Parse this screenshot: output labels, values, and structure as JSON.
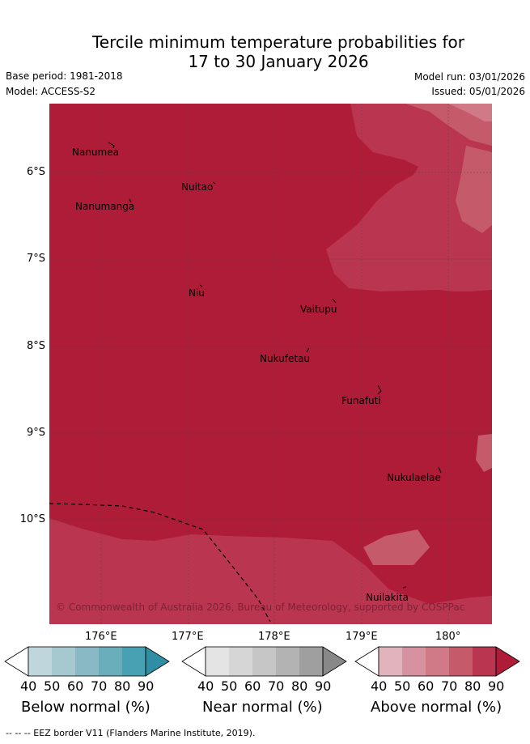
{
  "title": {
    "line1": "Tercile minimum temperature probabilities for",
    "line2": "17 to 30 January 2026"
  },
  "meta": {
    "base_period": "Base period: 1981-2018",
    "model": "Model: ACCESS-S2",
    "model_run": "Model run: 03/01/2026",
    "issued": "Issued: 05/01/2026"
  },
  "axes": {
    "lat_labels": [
      "6°S",
      "7°S",
      "8°S",
      "9°S",
      "10°S"
    ],
    "lon_labels": [
      "176°E",
      "177°E",
      "178°E",
      "179°E",
      "180°"
    ]
  },
  "places": [
    {
      "name": "Nanumea"
    },
    {
      "name": "Nuitao"
    },
    {
      "name": "Nanumanga"
    },
    {
      "name": "Niu"
    },
    {
      "name": "Vaitupu"
    },
    {
      "name": "Nukufetau"
    },
    {
      "name": "Funafuti"
    },
    {
      "name": "Nukulaelae"
    },
    {
      "name": "Nuilakita"
    }
  ],
  "copyright": "© Commonwealth of Australia 2026, Bureau of Meteorology, supported by COSPPac",
  "colorbars": [
    {
      "title": "Below normal (%)",
      "ticks": [
        "40",
        "50",
        "60",
        "70",
        "80",
        "90"
      ],
      "colors": [
        "#ffffff",
        "#bfd7dc",
        "#a6c8cf",
        "#88b9c4",
        "#6aaebb",
        "#48a1b2",
        "#2f8ea4"
      ]
    },
    {
      "title": "Near normal (%)",
      "ticks": [
        "40",
        "50",
        "60",
        "70",
        "80",
        "90"
      ],
      "colors": [
        "#ffffff",
        "#e4e4e4",
        "#d6d6d6",
        "#c6c6c6",
        "#b3b3b3",
        "#9f9f9f",
        "#888888"
      ]
    },
    {
      "title": "Above normal (%)",
      "ticks": [
        "40",
        "50",
        "60",
        "70",
        "80",
        "90"
      ],
      "colors": [
        "#ffffff",
        "#e0b3bd",
        "#d6929f",
        "#cf7a86",
        "#c55b6a",
        "#ba3550",
        "#ae1c37"
      ]
    }
  ],
  "footer": "--  --  -- EEZ border V11 (Flanders Marine Institute, 2019)."
}
